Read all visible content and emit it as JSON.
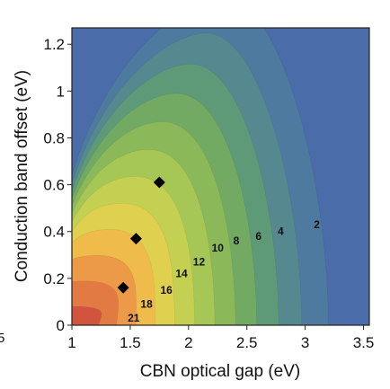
{
  "chart_data": {
    "type": "heatmap",
    "subtype": "filled-contour",
    "xlabel": "CBN optical gap (eV)",
    "ylabel": "Conduction band offset (eV)",
    "xlim": [
      1.0,
      3.55
    ],
    "ylim": [
      0.0,
      1.27
    ],
    "xticks": [
      1,
      1.5,
      2,
      2.5,
      3,
      3.5
    ],
    "xtick_labels": [
      "1",
      "1.5",
      "2",
      "2.5",
      "3",
      "3.5"
    ],
    "yticks": [
      0,
      0.2,
      0.4,
      0.6,
      0.8,
      1,
      1.2
    ],
    "ytick_labels": [
      "0",
      "0.2",
      "0.4",
      "0.6",
      "0.8",
      "1",
      "1.2"
    ],
    "contour_levels": [
      2,
      4,
      6,
      8,
      10,
      12,
      14,
      16,
      18,
      21
    ],
    "contour_labels": [
      {
        "text": "2",
        "x": 3.1,
        "y": 0.43
      },
      {
        "text": "4",
        "x": 2.79,
        "y": 0.4
      },
      {
        "text": "6",
        "x": 2.6,
        "y": 0.38
      },
      {
        "text": "8",
        "x": 2.41,
        "y": 0.36
      },
      {
        "text": "10",
        "x": 2.25,
        "y": 0.33
      },
      {
        "text": "12",
        "x": 2.09,
        "y": 0.27
      },
      {
        "text": "14",
        "x": 1.94,
        "y": 0.22
      },
      {
        "text": "16",
        "x": 1.81,
        "y": 0.15
      },
      {
        "text": "18",
        "x": 1.64,
        "y": 0.09
      },
      {
        "text": "21",
        "x": 1.53,
        "y": 0.03
      }
    ],
    "markers": [
      {
        "x": 1.75,
        "y": 0.61
      },
      {
        "x": 1.55,
        "y": 0.37
      },
      {
        "x": 1.44,
        "y": 0.16
      }
    ],
    "colorscale": [
      "#4a6ca8",
      "#4f7aa0",
      "#56888f",
      "#5f9a78",
      "#73aa63",
      "#8bb95a",
      "#a6c655",
      "#c4d052",
      "#dfd04f",
      "#efbb4b",
      "#ec9a47",
      "#e27a43",
      "#d3543e"
    ],
    "grid": false,
    "legend": "none"
  },
  "stray_left_label": "5"
}
